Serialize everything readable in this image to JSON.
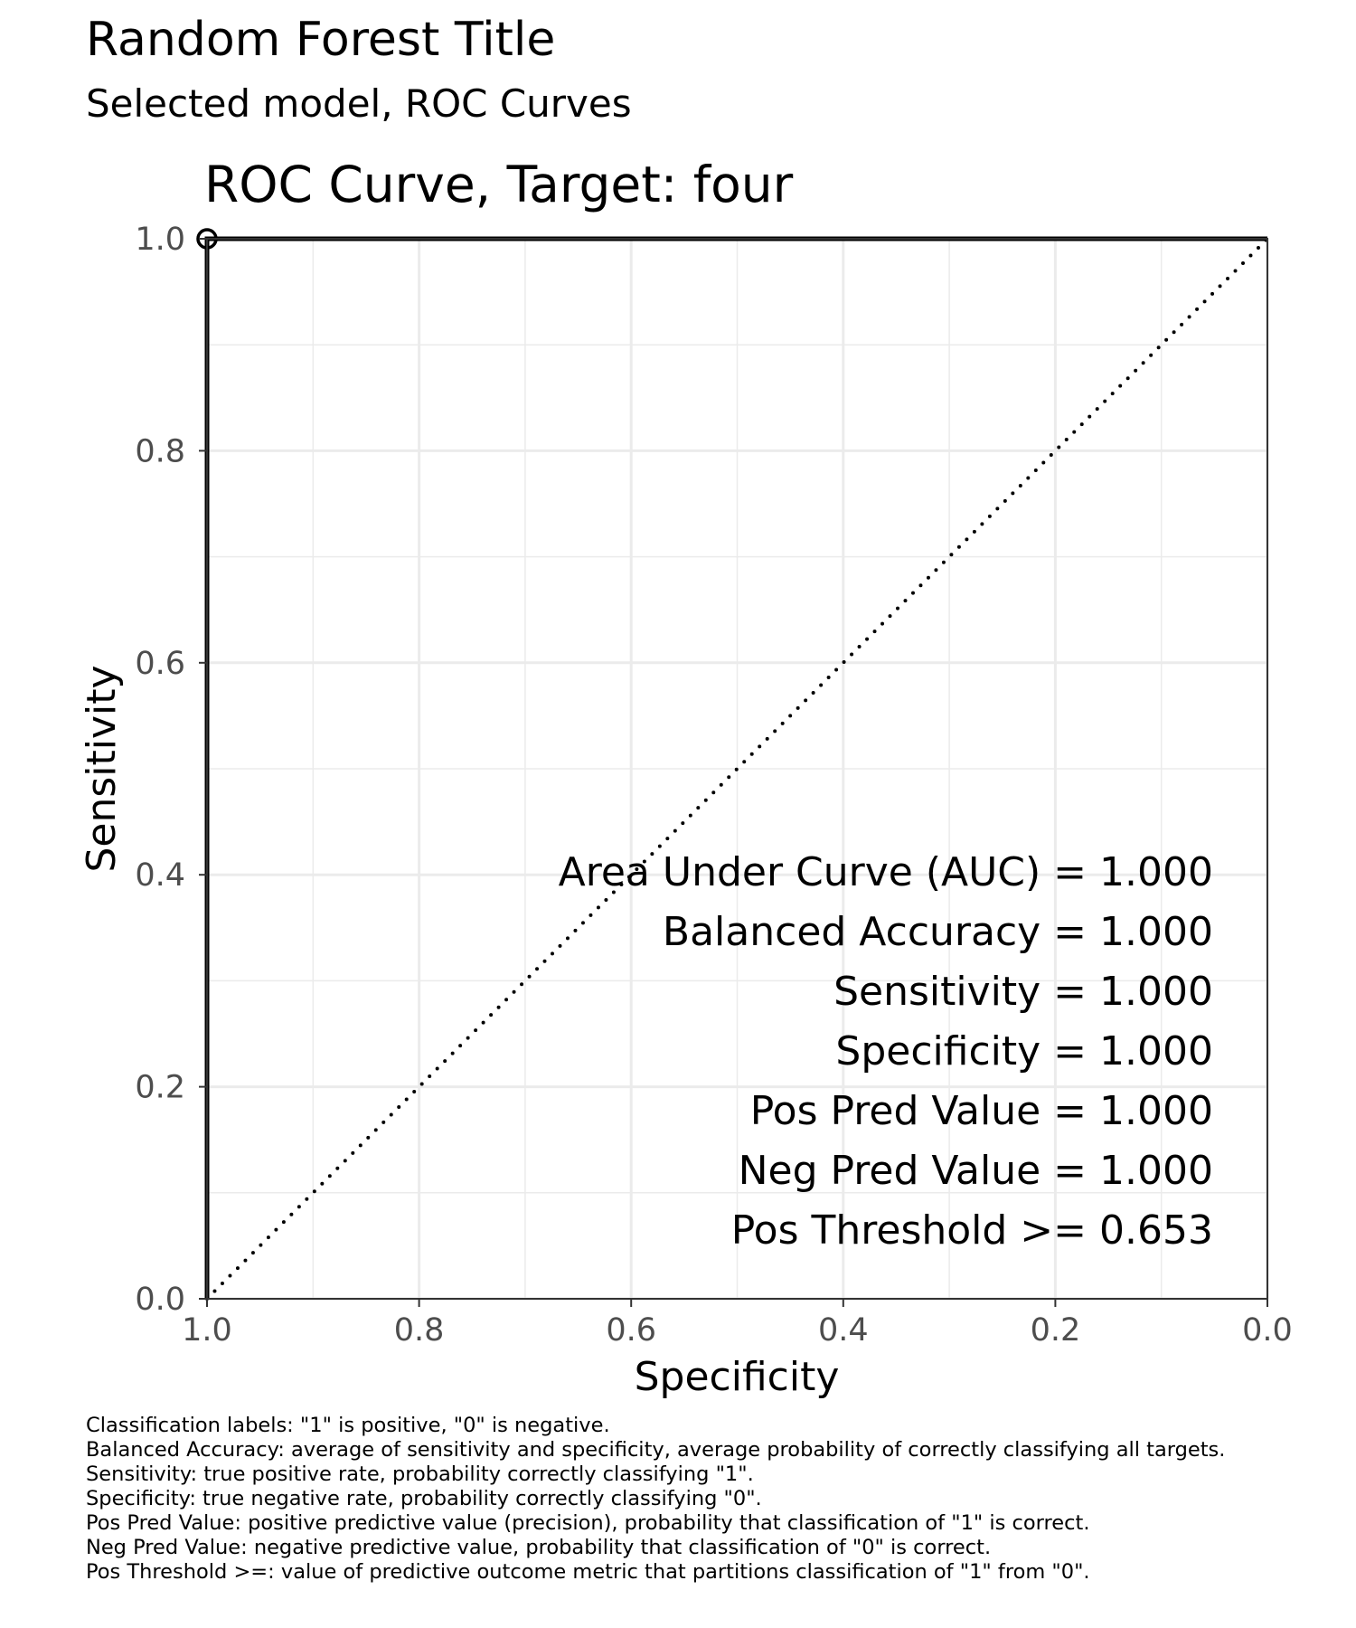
{
  "title": "Random Forest Title",
  "subtitle": "Selected model, ROC Curves",
  "chart_data": {
    "type": "line",
    "title": "ROC Curve, Target:  four",
    "xlabel": "Specificity",
    "ylabel": "Sensitivity",
    "xlim": [
      1.0,
      0.0
    ],
    "ylim": [
      0.0,
      1.0
    ],
    "x_reversed": true,
    "grid": true,
    "x_ticks": [
      "1.0",
      "0.8",
      "0.6",
      "0.4",
      "0.2",
      "0.0"
    ],
    "y_ticks": [
      "0.0",
      "0.2",
      "0.4",
      "0.6",
      "0.8",
      "1.0"
    ],
    "series": [
      {
        "style": "solid",
        "color": "#000000",
        "points": [
          [
            1.0,
            0.0
          ],
          [
            1.0,
            1.0
          ],
          [
            0.0,
            1.0
          ]
        ]
      },
      {
        "style": "dotted",
        "color": "#000000",
        "points": [
          [
            1.0,
            0.0
          ],
          [
            0.0,
            1.0
          ]
        ]
      }
    ],
    "threshold_point": {
      "x": 1.0,
      "y": 1.0
    },
    "annotations": [
      "Area Under Curve (AUC) = 1.000",
      "Balanced Accuracy = 1.000",
      "Sensitivity = 1.000",
      "Specificity = 1.000",
      "Pos Pred Value = 1.000",
      "Neg Pred Value = 1.000",
      "Pos Threshold >= 0.653"
    ]
  },
  "footnotes": [
    "Classification labels:  \"1\" is positive, \"0\" is negative.",
    "Balanced Accuracy:  average of sensitivity and specificity, average probability of correctly classifying all targets.",
    "Sensitivity:  true positive rate, probability correctly classifying \"1\".",
    "Specificity:  true negative rate, probability correctly classifying \"0\".",
    "Pos Pred Value:  positive predictive value (precision), probability that classification of \"1\" is correct.",
    "Neg Pred Value:  negative predictive value, probability that classification of \"0\" is correct.",
    "Pos Threshold >=:  value of predictive outcome metric that partitions classification of \"1\" from \"0\"."
  ]
}
